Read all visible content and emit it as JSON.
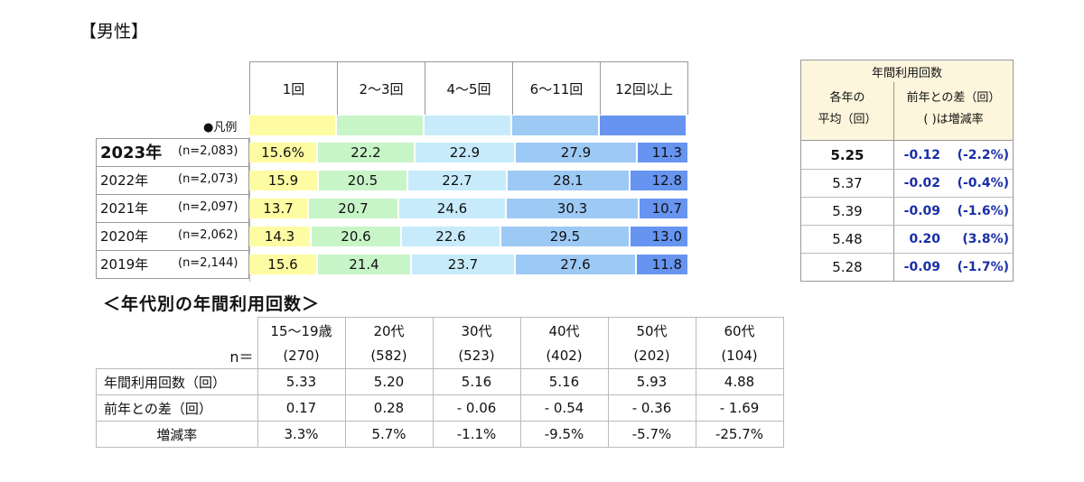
{
  "title": "【男性】",
  "legend_label": "●凡例",
  "chart_data": {
    "type": "bar",
    "stacked": "percent",
    "categories": [
      "1回",
      "2～3回",
      "4～5回",
      "6～11回",
      "12回以上"
    ],
    "colors": [
      "#fdfca2",
      "#c8f5c8",
      "#c7ebfb",
      "#9dc9f5",
      "#6694f0"
    ],
    "rows": [
      {
        "year": "2023年",
        "n": "(n=2,083)",
        "values": [
          15.6,
          22.2,
          22.9,
          27.9,
          11.3
        ],
        "labels": [
          "15.6%",
          "22.2",
          "22.9",
          "27.9",
          "11.3"
        ]
      },
      {
        "year": "2022年",
        "n": "(n=2,073)",
        "values": [
          15.9,
          20.5,
          22.7,
          28.1,
          12.8
        ],
        "labels": [
          "15.9",
          "20.5",
          "22.7",
          "28.1",
          "12.8"
        ]
      },
      {
        "year": "2021年",
        "n": "(n=2,097)",
        "values": [
          13.7,
          20.7,
          24.6,
          30.3,
          10.7
        ],
        "labels": [
          "13.7",
          "20.7",
          "24.6",
          "30.3",
          "10.7"
        ]
      },
      {
        "year": "2020年",
        "n": "(n=2,062)",
        "values": [
          14.3,
          20.6,
          22.6,
          29.5,
          13.0
        ],
        "labels": [
          "14.3",
          "20.6",
          "22.6",
          "29.5",
          "13.0"
        ]
      },
      {
        "year": "2019年",
        "n": "(n=2,144)",
        "values": [
          15.6,
          21.4,
          23.7,
          27.6,
          11.8
        ],
        "labels": [
          "15.6",
          "21.4",
          "23.7",
          "27.6",
          "11.8"
        ]
      }
    ]
  },
  "summary": {
    "header": "年間利用回数",
    "col1_line1": "各年の",
    "col1_line2": "平均（回）",
    "col2_line1": "前年との差（回）",
    "col2_line2": "( )は増減率",
    "rows": [
      {
        "avg": "5.25",
        "diff": "-0.12",
        "rate": "(-2.2%)"
      },
      {
        "avg": "5.37",
        "diff": "-0.02",
        "rate": "(-0.4%)"
      },
      {
        "avg": "5.39",
        "diff": "-0.09",
        "rate": "(-1.6%)"
      },
      {
        "avg": "5.48",
        "diff": "0.20",
        "rate": "(3.8%)"
      },
      {
        "avg": "5.28",
        "diff": "-0.09",
        "rate": "(-1.7%)"
      }
    ]
  },
  "age_table": {
    "title": "＜年代別の年間利用回数＞",
    "n_label": "n＝",
    "ages": [
      "15～19歳",
      "20代",
      "30代",
      "40代",
      "50代",
      "60代"
    ],
    "ns": [
      "(270)",
      "(582)",
      "(523)",
      "(402)",
      "(202)",
      "(104)"
    ],
    "rows": [
      {
        "label": "年間利用回数（回）",
        "values": [
          "5.33",
          "5.20",
          "5.16",
          "5.16",
          "5.93",
          "4.88"
        ]
      },
      {
        "label": "前年との差（回）",
        "values": [
          "0.17",
          "0.28",
          "-  0.06",
          "-  0.54",
          "-  0.36",
          "-  1.69"
        ]
      },
      {
        "label": "増減率",
        "values": [
          "3.3%",
          "5.7%",
          "-1.1%",
          "-9.5%",
          "-5.7%",
          "-25.7%"
        ]
      }
    ]
  }
}
